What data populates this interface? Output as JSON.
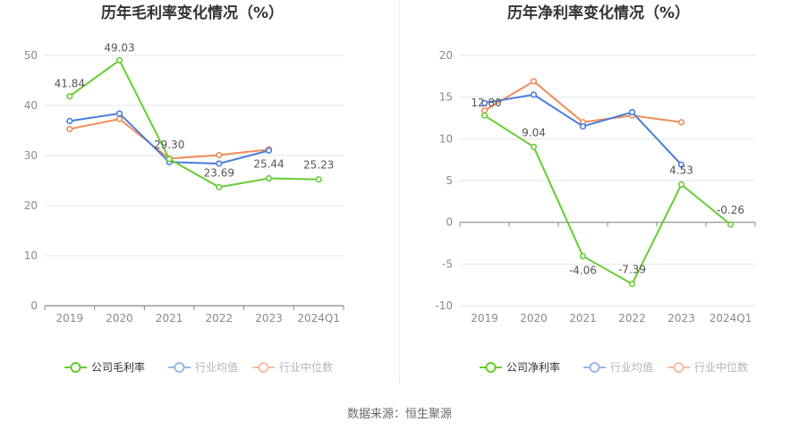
{
  "source_label": "数据来源：恒生聚源",
  "series_colors": [
    "#66cc33",
    "#4a7ddb",
    "#f08c5a"
  ],
  "chart_data": [
    {
      "type": "line",
      "title": "历年毛利率变化情况（%）",
      "categories": [
        "2019",
        "2020",
        "2021",
        "2022",
        "2023",
        "2024Q1"
      ],
      "ylim": [
        0,
        50
      ],
      "yticks": [
        0,
        10,
        20,
        30,
        40,
        50
      ],
      "grid": true,
      "legend_position": "bottom",
      "series": [
        {
          "name": "公司毛利率",
          "values": [
            41.84,
            49.03,
            29.3,
            23.69,
            25.44,
            25.23
          ],
          "labels": [
            "41.84",
            "49.03",
            "29.30",
            "23.69",
            "25.44",
            "25.23"
          ],
          "color": "#66cc33"
        },
        {
          "name": "行业均值",
          "values": [
            36.9,
            38.4,
            28.7,
            28.4,
            31.0,
            null
          ],
          "color": "#4a7ddb"
        },
        {
          "name": "行业中位数",
          "values": [
            35.3,
            37.3,
            29.4,
            30.1,
            31.2,
            null
          ],
          "color": "#f08c5a"
        }
      ]
    },
    {
      "type": "line",
      "title": "历年净利率变化情况（%）",
      "categories": [
        "2019",
        "2020",
        "2021",
        "2022",
        "2023",
        "2024Q1"
      ],
      "ylim": [
        -10,
        20
      ],
      "yticks": [
        -10,
        -5,
        0,
        5,
        10,
        15,
        20
      ],
      "grid": true,
      "legend_position": "bottom",
      "series": [
        {
          "name": "公司净利率",
          "values": [
            12.8,
            9.04,
            -4.06,
            -7.39,
            4.53,
            -0.26
          ],
          "labels": [
            "12.80",
            "9.04",
            "-4.06",
            "-7.39",
            "4.53",
            "-0.26"
          ],
          "color": "#66cc33"
        },
        {
          "name": "行业均值",
          "values": [
            14.3,
            15.3,
            11.5,
            13.2,
            6.9,
            null
          ],
          "color": "#4a7ddb"
        },
        {
          "name": "行业中位数",
          "values": [
            13.4,
            16.9,
            12.0,
            12.8,
            12.0,
            null
          ],
          "color": "#f08c5a"
        }
      ]
    }
  ]
}
